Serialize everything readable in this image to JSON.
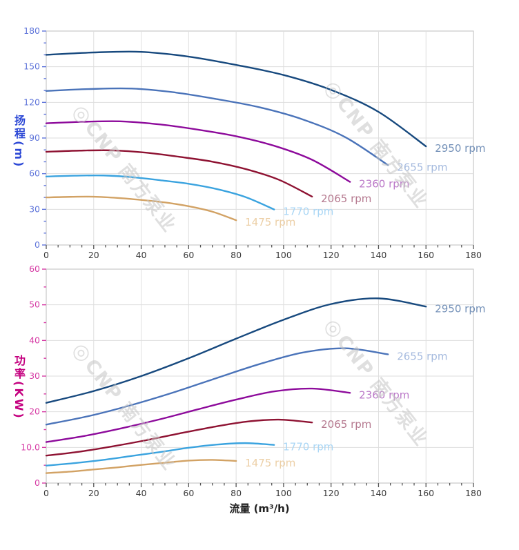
{
  "page": {
    "background": "#ffffff"
  },
  "watermark": {
    "logo_glyph": "◎",
    "text": "CNP 南方泵业"
  },
  "x_axis": {
    "title": "流量 (m³/h)",
    "tick_label_color": "#3a3a3a",
    "tick_mark_color": "#555555"
  },
  "chart_data": [
    {
      "type": "line",
      "id": "head-curves",
      "title": "",
      "xlabel": "流量 (m³/h)",
      "ylabel": "扬程 (m)",
      "ylabel_cjk": "扬程",
      "ylabel_unit": "(m)",
      "xlim": [
        0,
        180
      ],
      "ylim": [
        0,
        180
      ],
      "x_major_step": 20,
      "x_minor_step": 5,
      "y_major_step": 30,
      "y_minor_step": 10,
      "x_tick_labels": [
        "0",
        "20",
        "40",
        "60",
        "80",
        "100",
        "120",
        "140",
        "160",
        "180"
      ],
      "y_tick_labels": [
        "0",
        "30",
        "60",
        "90",
        "120",
        "150",
        "180"
      ],
      "grid": true,
      "legend_position": "curve-ends",
      "axis_title_color": "#2d49d6",
      "tick_color": "#5f75da",
      "series": [
        {
          "name": "2950 rpm",
          "color": "#17497e",
          "label_color": "#7491b8",
          "x": [
            0,
            20,
            40,
            60,
            80,
            100,
            120,
            140,
            160
          ],
          "y": [
            160,
            162,
            162.5,
            158.5,
            151.5,
            143,
            130.5,
            112,
            83
          ]
        },
        {
          "name": "2655 rpm",
          "color": "#4a73b9",
          "label_color": "#a5bade",
          "x": [
            0,
            18,
            36,
            54,
            72,
            90,
            108,
            126,
            144
          ],
          "y": [
            129.6,
            131.2,
            131.6,
            128.4,
            122.7,
            115.8,
            105.7,
            90.7,
            67.2
          ]
        },
        {
          "name": "2360 rpm",
          "color": "#8d0a9b",
          "label_color": "#bb79c8",
          "x": [
            0,
            16,
            32,
            48,
            64,
            80,
            96,
            112,
            128
          ],
          "y": [
            102.4,
            103.7,
            104,
            101.4,
            97,
            91.5,
            83.5,
            71.7,
            53.1
          ]
        },
        {
          "name": "2065 rpm",
          "color": "#8e1232",
          "label_color": "#b5798f",
          "x": [
            0,
            14,
            28,
            42,
            56,
            70,
            84,
            98,
            112
          ],
          "y": [
            78.4,
            79.4,
            79.6,
            77.7,
            74.2,
            70.1,
            63.9,
            54.9,
            40.7
          ]
        },
        {
          "name": "1770 rpm",
          "color": "#3aa3df",
          "label_color": "#a9d6f5",
          "x": [
            0,
            12,
            24,
            36,
            48,
            60,
            72,
            84,
            96
          ],
          "y": [
            57.6,
            58.3,
            58.5,
            57.1,
            54.5,
            51.5,
            47,
            40.3,
            29.9
          ]
        },
        {
          "name": "1475 rpm",
          "color": "#d2a264",
          "label_color": "#eccfa6",
          "x": [
            0,
            10,
            20,
            30,
            40,
            50,
            60,
            70,
            80
          ],
          "y": [
            40,
            40.5,
            40.6,
            39.6,
            37.9,
            35.8,
            32.6,
            28,
            20.8
          ]
        }
      ]
    },
    {
      "type": "line",
      "id": "power-curves",
      "title": "",
      "xlabel": "流量 (m³/h)",
      "ylabel": "功率 (KW)",
      "ylabel_cjk": "功率",
      "ylabel_unit": "(KW)",
      "xlim": [
        0,
        180
      ],
      "ylim": [
        0,
        60
      ],
      "x_major_step": 20,
      "x_minor_step": 5,
      "y_major_step": 10,
      "y_minor_step": 5,
      "x_tick_labels": [
        "0",
        "20",
        "40",
        "60",
        "80",
        "100",
        "120",
        "140",
        "160",
        "180"
      ],
      "y_tick_labels": [
        "0",
        "10.0",
        "20",
        "30",
        "40",
        "50",
        "60"
      ],
      "grid": true,
      "legend_position": "curve-ends",
      "axis_title_color": "#c4007f",
      "tick_color": "#d63aa4",
      "series": [
        {
          "name": "2950 rpm",
          "color": "#17497e",
          "label_color": "#7491b8",
          "x": [
            0,
            20,
            40,
            60,
            80,
            100,
            120,
            140,
            160
          ],
          "y": [
            22.5,
            25.8,
            30,
            35,
            40.5,
            45.8,
            50.2,
            51.8,
            49.5
          ]
        },
        {
          "name": "2655 rpm",
          "color": "#4a73b9",
          "label_color": "#a5bade",
          "x": [
            0,
            18,
            36,
            54,
            72,
            90,
            108,
            126,
            144
          ],
          "y": [
            16.4,
            18.8,
            21.9,
            25.5,
            29.5,
            33.4,
            36.6,
            37.8,
            36.1
          ]
        },
        {
          "name": "2360 rpm",
          "color": "#8d0a9b",
          "label_color": "#bb79c8",
          "x": [
            0,
            16,
            32,
            48,
            64,
            80,
            96,
            112,
            128
          ],
          "y": [
            11.5,
            13.2,
            15.4,
            17.9,
            20.7,
            23.4,
            25.7,
            26.5,
            25.3
          ]
        },
        {
          "name": "2065 rpm",
          "color": "#8e1232",
          "label_color": "#b5798f",
          "x": [
            0,
            14,
            28,
            42,
            56,
            70,
            84,
            98,
            112
          ],
          "y": [
            7.7,
            8.8,
            10.3,
            12,
            13.9,
            15.7,
            17.2,
            17.8,
            17
          ]
        },
        {
          "name": "1770 rpm",
          "color": "#3aa3df",
          "label_color": "#a9d6f5",
          "x": [
            0,
            12,
            24,
            36,
            48,
            60,
            72,
            84,
            96
          ],
          "y": [
            4.9,
            5.6,
            6.5,
            7.6,
            8.7,
            9.9,
            10.8,
            11.2,
            10.7
          ]
        },
        {
          "name": "1475 rpm",
          "color": "#d2a264",
          "label_color": "#eccfa6",
          "x": [
            0,
            10,
            20,
            30,
            40,
            50,
            60,
            70,
            80
          ],
          "y": [
            2.8,
            3.2,
            3.8,
            4.4,
            5.1,
            5.7,
            6.3,
            6.5,
            6.2
          ]
        }
      ]
    }
  ]
}
